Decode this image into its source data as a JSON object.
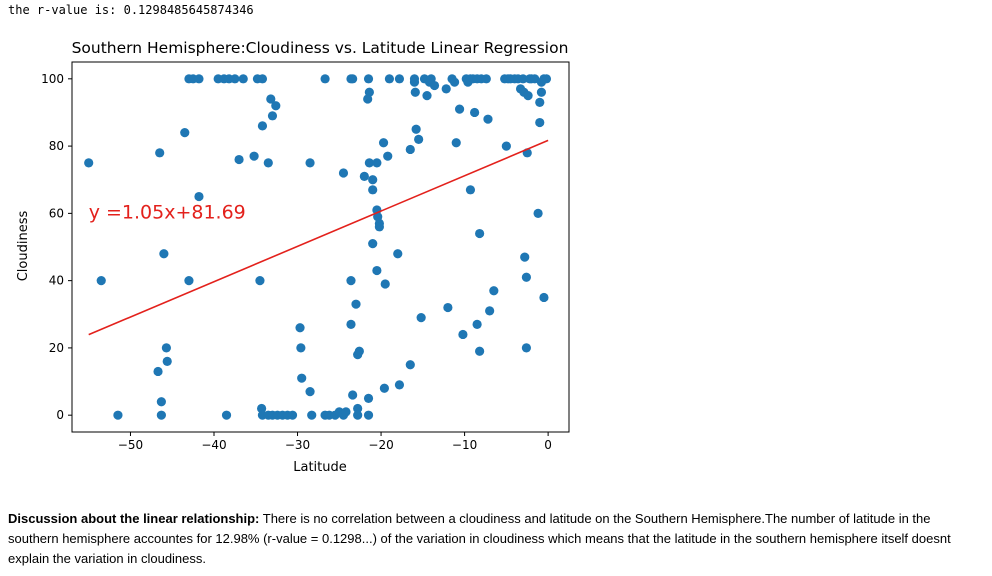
{
  "output": {
    "text": "the r-value is: 0.1298485645874346"
  },
  "discussion": {
    "heading": "Discussion about the linear relationship:",
    "body": " There is no correlation between a cloudiness and latitude on the Southern Hemisphere.The number of latitude in the southern hemisphere accountes for 12.98% (r-value = 0.1298...) of the variation in cloudiness which means that the latitude in the southern hemisphere itself doesnt explain the variation in cloudiness."
  },
  "colors": {
    "points": "#1f77b4",
    "line": "#e3211c",
    "equation": "#e3211c"
  },
  "chart_data": {
    "type": "scatter",
    "title": "Southern Hemisphere:Cloudiness vs. Latitude Linear Regression",
    "xlabel": "Latitude",
    "ylabel": "Cloudiness",
    "xlim": [
      -57,
      2.5
    ],
    "ylim": [
      -5,
      105
    ],
    "xticks": [
      -50,
      -40,
      -30,
      -20,
      -10,
      0
    ],
    "xtick_labels": [
      "−50",
      "−40",
      "−30",
      "−20",
      "−10",
      "0"
    ],
    "yticks": [
      0,
      20,
      40,
      60,
      80,
      100
    ],
    "ytick_labels": [
      "0",
      "20",
      "40",
      "60",
      "80",
      "100"
    ],
    "grid": false,
    "annotation": {
      "text": "y =1.05x+81.69",
      "x": -55,
      "y": 58.5
    },
    "regression": {
      "slope": 1.05,
      "intercept": 81.69,
      "x_range": [
        -55,
        0
      ]
    },
    "points": [
      [
        -55,
        75
      ],
      [
        -53.5,
        40
      ],
      [
        -51.5,
        0
      ],
      [
        -46.5,
        78
      ],
      [
        -46.7,
        13
      ],
      [
        -46.3,
        4
      ],
      [
        -46.3,
        0
      ],
      [
        -46,
        48
      ],
      [
        -45.7,
        20
      ],
      [
        -45.6,
        16
      ],
      [
        -43.5,
        84
      ],
      [
        -43,
        40
      ],
      [
        -43,
        100
      ],
      [
        -42.5,
        100
      ],
      [
        -41.8,
        100
      ],
      [
        -41.8,
        65
      ],
      [
        -39.5,
        100
      ],
      [
        -38.8,
        100
      ],
      [
        -38.2,
        100
      ],
      [
        -37.5,
        100
      ],
      [
        -37,
        76
      ],
      [
        -36.5,
        100
      ],
      [
        -38.5,
        0
      ],
      [
        -35.2,
        77
      ],
      [
        -34.8,
        100
      ],
      [
        -34.2,
        100
      ],
      [
        -34.5,
        40
      ],
      [
        -34.2,
        86
      ],
      [
        -33.5,
        75
      ],
      [
        -33.2,
        94
      ],
      [
        -33,
        89
      ],
      [
        -32.6,
        92
      ],
      [
        -34.3,
        2
      ],
      [
        -34.2,
        0
      ],
      [
        -33.5,
        0
      ],
      [
        -33,
        0
      ],
      [
        -32.4,
        0
      ],
      [
        -31.8,
        0
      ],
      [
        -31.2,
        0
      ],
      [
        -30.6,
        0
      ],
      [
        -29.7,
        26
      ],
      [
        -29.6,
        20
      ],
      [
        -29.5,
        11
      ],
      [
        -28.5,
        7
      ],
      [
        -28.5,
        75
      ],
      [
        -28.3,
        0
      ],
      [
        -26.7,
        100
      ],
      [
        -26.7,
        0
      ],
      [
        -26.2,
        0
      ],
      [
        -25.5,
        0
      ],
      [
        -25,
        1
      ],
      [
        -24.5,
        72
      ],
      [
        -24.5,
        0
      ],
      [
        -24.2,
        1
      ],
      [
        -23.6,
        100
      ],
      [
        -23.4,
        100
      ],
      [
        -23.6,
        40
      ],
      [
        -23.6,
        27
      ],
      [
        -23.4,
        6
      ],
      [
        -23,
        33
      ],
      [
        -22.8,
        18
      ],
      [
        -22.6,
        19
      ],
      [
        -22.8,
        2
      ],
      [
        -22.8,
        0
      ],
      [
        -22,
        71
      ],
      [
        -21.5,
        100
      ],
      [
        -21.4,
        96
      ],
      [
        -21.6,
        94
      ],
      [
        -21.4,
        75
      ],
      [
        -21,
        70
      ],
      [
        -21,
        67
      ],
      [
        -21,
        51
      ],
      [
        -21.5,
        0
      ],
      [
        -21.5,
        5
      ],
      [
        -20.5,
        75
      ],
      [
        -20.5,
        61
      ],
      [
        -20.4,
        59
      ],
      [
        -20.2,
        57
      ],
      [
        -20.2,
        56
      ],
      [
        -20.5,
        43
      ],
      [
        -19.7,
        81
      ],
      [
        -19.5,
        39
      ],
      [
        -19.6,
        8
      ],
      [
        -19.2,
        77
      ],
      [
        -19,
        100
      ],
      [
        -18,
        48
      ],
      [
        -17.8,
        100
      ],
      [
        -17.8,
        9
      ],
      [
        -16.5,
        79
      ],
      [
        -16.5,
        15
      ],
      [
        -16,
        100
      ],
      [
        -16,
        99
      ],
      [
        -15.9,
        96
      ],
      [
        -15.8,
        85
      ],
      [
        -15.5,
        82
      ],
      [
        -15.2,
        29
      ],
      [
        -14.8,
        100
      ],
      [
        -14.5,
        95
      ],
      [
        -14.2,
        99
      ],
      [
        -14,
        100
      ],
      [
        -13.6,
        98
      ],
      [
        -12.2,
        97
      ],
      [
        -12,
        32
      ],
      [
        -11.5,
        100
      ],
      [
        -11.2,
        99
      ],
      [
        -11,
        81
      ],
      [
        -10.6,
        91
      ],
      [
        -10.2,
        24
      ],
      [
        -9.8,
        100
      ],
      [
        -9.6,
        99
      ],
      [
        -9.3,
        100
      ],
      [
        -9.3,
        67
      ],
      [
        -9,
        100
      ],
      [
        -8.8,
        90
      ],
      [
        -8.5,
        100
      ],
      [
        -8.5,
        27
      ],
      [
        -8.2,
        54
      ],
      [
        -8.2,
        19
      ],
      [
        -8,
        100
      ],
      [
        -7.4,
        100
      ],
      [
        -7.2,
        88
      ],
      [
        -7,
        31
      ],
      [
        -6.5,
        37
      ],
      [
        -5.2,
        100
      ],
      [
        -5,
        80
      ],
      [
        -4.8,
        100
      ],
      [
        -4.5,
        100
      ],
      [
        -4,
        100
      ],
      [
        -3.6,
        100
      ],
      [
        -3.3,
        97
      ],
      [
        -3,
        100
      ],
      [
        -2.9,
        96
      ],
      [
        -2.8,
        47
      ],
      [
        -2.6,
        41
      ],
      [
        -2.6,
        20
      ],
      [
        -2.5,
        78
      ],
      [
        -2.4,
        95
      ],
      [
        -2.2,
        100
      ],
      [
        -2,
        100
      ],
      [
        -1.6,
        100
      ],
      [
        -1.2,
        60
      ],
      [
        -1,
        93
      ],
      [
        -1,
        87
      ],
      [
        -0.8,
        99
      ],
      [
        -0.8,
        96
      ],
      [
        -0.5,
        35
      ],
      [
        -0.5,
        100
      ],
      [
        -0.2,
        100
      ]
    ]
  }
}
